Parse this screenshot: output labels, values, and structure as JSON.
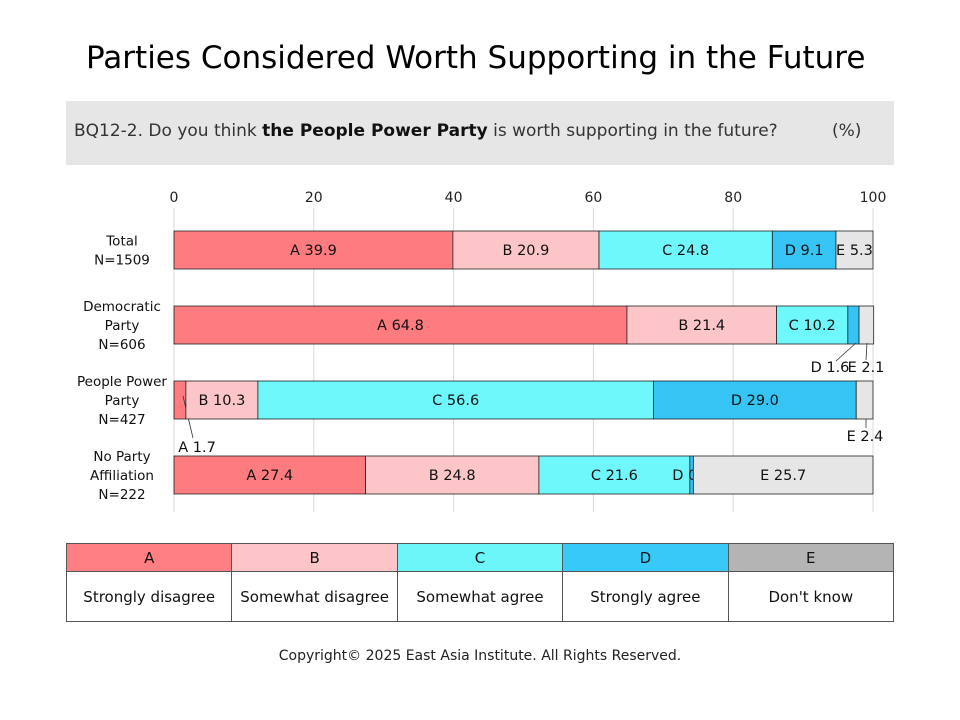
{
  "title": "Parties Considered Worth Supporting in the Future",
  "question": {
    "prefix": "BQ12-2. Do you think ",
    "bold": "the People Power Party",
    "suffix": " is worth supporting in the future?",
    "unit": "(%)"
  },
  "legend": [
    {
      "code": "A",
      "label": "Strongly disagree",
      "color": "#fe7c80",
      "header_color": "#ff7f84"
    },
    {
      "code": "B",
      "label": "Somewhat disagree",
      "color": "#fcc6c8",
      "header_color": "#fdc5c8"
    },
    {
      "code": "C",
      "label": "Somewhat agree",
      "color": "#6ef8fb",
      "header_color": "#6cf6f9"
    },
    {
      "code": "D",
      "label": "Strongly agree",
      "color": "#35c4f4",
      "header_color": "#38c9f7"
    },
    {
      "code": "E",
      "label": "Don't know",
      "color": "#e6e6e6",
      "header_color": "#b4b4b4"
    }
  ],
  "copyright": "Copyright© 2025 East Asia Institute. All Rights Reserved.",
  "chart_data": {
    "type": "bar",
    "orientation": "horizontal",
    "stacked": true,
    "xlim": [
      0,
      100
    ],
    "xticks": [
      0,
      20,
      40,
      60,
      80,
      100
    ],
    "categories": [
      [
        "Total",
        "N=1509"
      ],
      [
        "Democratic",
        "Party",
        "N=606"
      ],
      [
        "People Power",
        "Party",
        "N=427"
      ],
      [
        "No Party",
        "Affiliation",
        "N=222"
      ]
    ],
    "series": [
      {
        "name": "A",
        "values": [
          39.9,
          64.8,
          1.7,
          27.4
        ]
      },
      {
        "name": "B",
        "values": [
          20.9,
          21.4,
          10.3,
          24.8
        ]
      },
      {
        "name": "C",
        "values": [
          24.8,
          10.2,
          56.6,
          21.6
        ]
      },
      {
        "name": "D",
        "values": [
          9.1,
          1.6,
          29.0,
          0.5
        ]
      },
      {
        "name": "E",
        "values": [
          5.3,
          2.1,
          2.4,
          25.7
        ]
      }
    ],
    "gridlines": true
  }
}
